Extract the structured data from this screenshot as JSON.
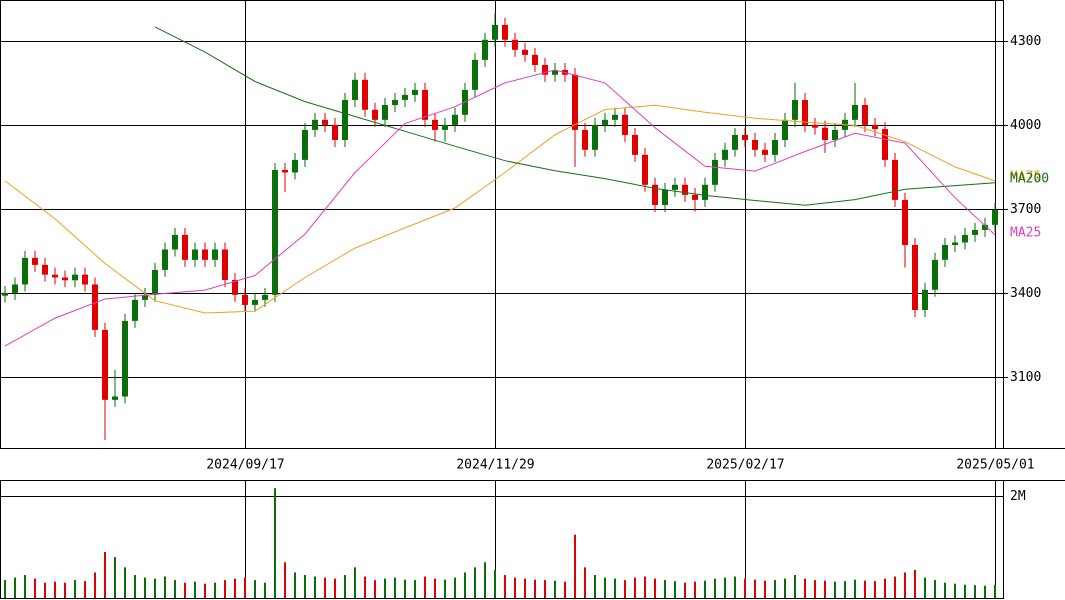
{
  "chart_data": {
    "type": "candlestick",
    "up_color": "#0a6e0a",
    "down_color": "#e00000",
    "categories": [
      null,
      null,
      null,
      null,
      null,
      null,
      null,
      null,
      null,
      null,
      null,
      null,
      null,
      null,
      null,
      null,
      null,
      null,
      null,
      null,
      null,
      null,
      null,
      null,
      "2024/09/17",
      null,
      null,
      null,
      null,
      null,
      null,
      null,
      null,
      null,
      null,
      null,
      null,
      null,
      null,
      null,
      null,
      null,
      null,
      null,
      null,
      null,
      null,
      null,
      null,
      "2024/11/29",
      null,
      null,
      null,
      null,
      null,
      null,
      null,
      null,
      null,
      null,
      null,
      null,
      null,
      null,
      null,
      null,
      null,
      null,
      null,
      null,
      null,
      null,
      null,
      null,
      "2025/02/17",
      null,
      null,
      null,
      null,
      null,
      null,
      null,
      null,
      null,
      null,
      null,
      null,
      null,
      null,
      null,
      null,
      null,
      null,
      null,
      null,
      null,
      null,
      null,
      null,
      "2025/05/01"
    ],
    "open": [
      3390,
      3400,
      3430,
      3525,
      3500,
      3465,
      3455,
      3445,
      3465,
      3430,
      3268,
      3018,
      3030,
      3300,
      3375,
      3393,
      3482,
      3555,
      3607,
      3518,
      3555,
      3518,
      3555,
      3446,
      3393,
      3357,
      3375,
      3393,
      3839,
      3830,
      3875,
      3982,
      4018,
      4000,
      3946,
      4089,
      4161,
      4054,
      4018,
      4071,
      4089,
      4107,
      4125,
      4018,
      3982,
      4000,
      4036,
      4125,
      4232,
      4304,
      4357,
      4304,
      4268,
      4250,
      4214,
      4179,
      4196,
      4179,
      3982,
      3911,
      4000,
      4018,
      4036,
      3964,
      3893,
      3786,
      3714,
      3768,
      3786,
      3750,
      3732,
      3786,
      3875,
      3911,
      3964,
      3946,
      3911,
      3893,
      3946,
      4018,
      4089,
      4000,
      3990,
      3946,
      3982,
      4018,
      4071,
      4000,
      3985,
      3875,
      3732,
      3571,
      3339,
      3411,
      3518,
      3571,
      3580,
      3607,
      3625,
      3643
    ],
    "high": [
      3425,
      3455,
      3550,
      3550,
      3525,
      3490,
      3480,
      3490,
      3490,
      3455,
      3293,
      3125,
      3325,
      3400,
      3418,
      3507,
      3580,
      3632,
      3632,
      3580,
      3580,
      3580,
      3580,
      3471,
      3418,
      3400,
      3418,
      3864,
      3864,
      3900,
      4007,
      4043,
      4043,
      4025,
      4114,
      4186,
      4186,
      4079,
      4096,
      4114,
      4132,
      4150,
      4150,
      4043,
      4025,
      4061,
      4150,
      4257,
      4329,
      4400,
      4382,
      4329,
      4293,
      4275,
      4239,
      4221,
      4221,
      4204,
      4007,
      4025,
      4043,
      4061,
      4061,
      3989,
      3918,
      3811,
      3793,
      3811,
      3811,
      3775,
      3811,
      3900,
      3936,
      3989,
      3989,
      3971,
      3936,
      3971,
      4043,
      4150,
      4114,
      4025,
      4015,
      4007,
      4043,
      4150,
      4096,
      4025,
      4010,
      3900,
      3757,
      3596,
      3436,
      3543,
      3596,
      3605,
      3632,
      3650,
      3668,
      3721
    ],
    "low": [
      3365,
      3375,
      3405,
      3475,
      3440,
      3430,
      3420,
      3420,
      3405,
      3243,
      2875,
      2993,
      3005,
      3275,
      3350,
      3368,
      3457,
      3530,
      3493,
      3493,
      3493,
      3493,
      3421,
      3368,
      3332,
      3332,
      3350,
      3368,
      3760,
      3805,
      3850,
      3957,
      3975,
      3921,
      3921,
      4064,
      4029,
      3993,
      3993,
      4046,
      4064,
      4082,
      3993,
      3940,
      3940,
      3975,
      4011,
      4100,
      4207,
      4279,
      4279,
      4243,
      4225,
      4189,
      4154,
      4154,
      4154,
      3850,
      3886,
      3886,
      3975,
      3993,
      3939,
      3868,
      3761,
      3689,
      3689,
      3743,
      3725,
      3690,
      3707,
      3761,
      3850,
      3886,
      3921,
      3886,
      3868,
      3868,
      3921,
      3993,
      3975,
      3965,
      3900,
      3921,
      3957,
      3993,
      3975,
      3960,
      3850,
      3707,
      3490,
      3314,
      3314,
      3386,
      3493,
      3546,
      3555,
      3582,
      3600,
      3618
    ],
    "close": [
      3400,
      3430,
      3525,
      3500,
      3465,
      3455,
      3445,
      3465,
      3430,
      3268,
      3018,
      3030,
      3300,
      3375,
      3393,
      3482,
      3555,
      3607,
      3518,
      3555,
      3518,
      3555,
      3446,
      3393,
      3357,
      3375,
      3393,
      3839,
      3830,
      3875,
      3982,
      4018,
      4000,
      3946,
      4089,
      4161,
      4054,
      4018,
      4071,
      4089,
      4107,
      4125,
      4018,
      3982,
      4000,
      4036,
      4125,
      4232,
      4304,
      4357,
      4304,
      4268,
      4250,
      4214,
      4179,
      4196,
      4179,
      3982,
      3911,
      4000,
      4018,
      4036,
      3964,
      3893,
      3786,
      3714,
      3768,
      3786,
      3750,
      3732,
      3786,
      3875,
      3911,
      3964,
      3946,
      3911,
      3893,
      3946,
      4018,
      4089,
      4000,
      3990,
      3946,
      3982,
      4018,
      4071,
      4000,
      3985,
      3875,
      3732,
      3571,
      3339,
      3411,
      3518,
      3571,
      3580,
      3607,
      3625,
      3643,
      3696
    ],
    "ylim": [
      2846,
      4446
    ],
    "yticks": [
      3100,
      3400,
      3700,
      4000,
      4300
    ],
    "series": [
      {
        "name": "MA75",
        "color": "#f0a020",
        "x": [
          0,
          5,
          10,
          15,
          20,
          25,
          30,
          35,
          40,
          45,
          50,
          55,
          60,
          65,
          70,
          75,
          80,
          85,
          90,
          95,
          99
        ],
        "values": [
          3800,
          3665,
          3505,
          3372,
          3328,
          3335,
          3455,
          3560,
          3632,
          3703,
          3830,
          3965,
          4055,
          4070,
          4045,
          4024,
          4010,
          3998,
          3940,
          3850,
          3800
        ]
      },
      {
        "name": "MA200",
        "color": "#1a6e1a",
        "x": [
          0,
          5,
          10,
          15,
          20,
          25,
          30,
          35,
          40,
          45,
          50,
          55,
          60,
          65,
          70,
          75,
          80,
          85,
          90,
          95,
          99
        ],
        "values": [
          null,
          null,
          null,
          4350,
          4260,
          4155,
          4083,
          4030,
          3977,
          3924,
          3872,
          3836,
          3808,
          3773,
          3748,
          3730,
          3713,
          3733,
          3770,
          3783,
          3793
        ]
      },
      {
        "name": "MA25",
        "color": "#e040c0",
        "x": [
          0,
          5,
          10,
          15,
          20,
          25,
          30,
          35,
          40,
          45,
          50,
          55,
          60,
          65,
          70,
          75,
          80,
          85,
          90,
          95,
          99
        ],
        "values": [
          3210,
          3310,
          3378,
          3395,
          3410,
          3462,
          3610,
          3830,
          4005,
          4065,
          4150,
          4196,
          4150,
          3990,
          3852,
          3835,
          3905,
          3970,
          3935,
          3740,
          3607
        ]
      }
    ],
    "volume": {
      "ylim": [
        0,
        2310000
      ],
      "yticks": [
        {
          "value": 2000000,
          "label": "2M"
        }
      ],
      "values": [
        350000,
        400000,
        450000,
        380000,
        300000,
        320000,
        300000,
        350000,
        330000,
        500000,
        900000,
        800000,
        600000,
        450000,
        400000,
        380000,
        420000,
        350000,
        300000,
        320000,
        280000,
        300000,
        350000,
        380000,
        400000,
        350000,
        300000,
        2150000,
        700000,
        500000,
        450000,
        420000,
        400000,
        380000,
        450000,
        600000,
        420000,
        350000,
        380000,
        400000,
        360000,
        350000,
        420000,
        380000,
        360000,
        400000,
        500000,
        600000,
        700000,
        550000,
        450000,
        400000,
        380000,
        360000,
        350000,
        340000,
        320000,
        1240000,
        600000,
        450000,
        400000,
        380000,
        350000,
        400000,
        420000,
        380000,
        350000,
        330000,
        300000,
        320000,
        340000,
        380000,
        400000,
        420000,
        380000,
        360000,
        340000,
        350000,
        380000,
        450000,
        380000,
        350000,
        340000,
        320000,
        330000,
        360000,
        340000,
        330000,
        380000,
        420000,
        500000,
        550000,
        400000,
        350000,
        300000,
        280000,
        260000,
        250000,
        240000,
        260000
      ]
    }
  }
}
